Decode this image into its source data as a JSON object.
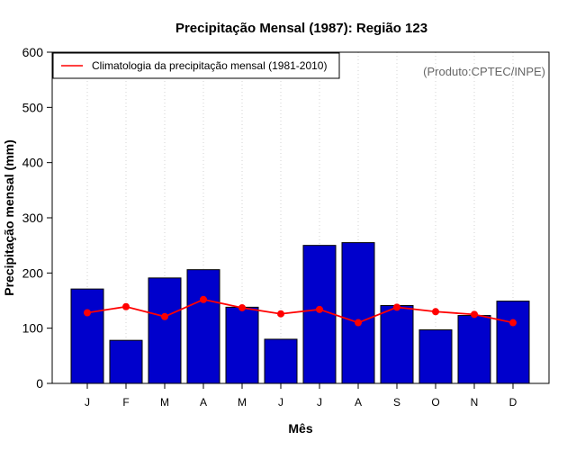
{
  "chart_data": {
    "type": "bar",
    "title": "Precipitação Mensal (1987): Região 123",
    "xlabel": "Mês",
    "ylabel": "Precipitação mensal (mm)",
    "ylim": [
      0,
      600
    ],
    "yticks": [
      0,
      100,
      200,
      300,
      400,
      500,
      600
    ],
    "categories": [
      "J",
      "F",
      "M",
      "A",
      "M",
      "J",
      "J",
      "A",
      "S",
      "O",
      "N",
      "D"
    ],
    "series": [
      {
        "name": "Precipitação mensal (1987)",
        "type": "bar",
        "color": "#0000CC",
        "values": [
          171,
          78,
          191,
          206,
          138,
          80,
          250,
          255,
          141,
          97,
          123,
          149
        ]
      },
      {
        "name": "Climatologia da precipitação mensal (1981-2010)",
        "type": "line",
        "color": "#FF0000",
        "values": [
          128,
          139,
          121,
          152,
          137,
          126,
          134,
          110,
          138,
          130,
          125,
          110
        ]
      }
    ],
    "legend": {
      "position": "top-left",
      "entries": [
        "Climatologia da precipitação mensal (1981-2010)"
      ]
    },
    "annotation": "(Produto:CPTEC/INPE)",
    "grid": "vertical dotted"
  }
}
